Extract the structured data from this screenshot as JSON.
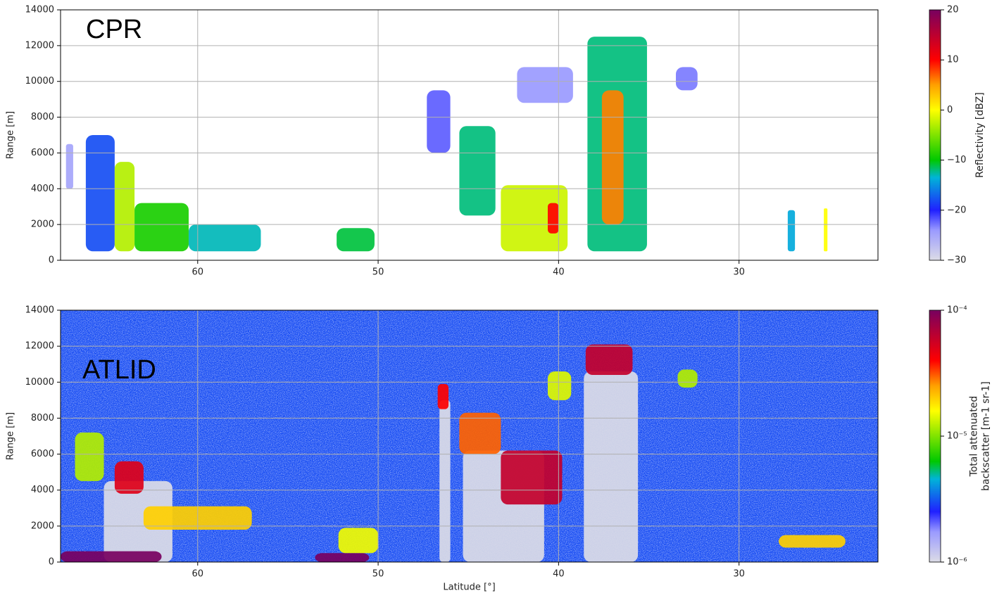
{
  "chart_data": [
    {
      "type": "heatmap",
      "title": "CPR",
      "ylabel": "Range [m]",
      "xlim": [
        67.6,
        22.3
      ],
      "ylim": [
        0,
        14000
      ],
      "xticks": [
        60,
        50,
        40,
        30
      ],
      "yticks": [
        0,
        2000,
        4000,
        6000,
        8000,
        10000,
        12000,
        14000
      ],
      "grid": true,
      "colorbar": {
        "label": [
          "Reflectivity [dBZ]"
        ],
        "lim": [
          -30,
          20
        ],
        "scale": "linear",
        "ticks": [
          {
            "value": -30,
            "label": "−30"
          },
          {
            "value": -20,
            "label": "−20"
          },
          {
            "value": -10,
            "label": "−10"
          },
          0,
          10,
          20
        ]
      },
      "cells": [
        {
          "x": [
            67.3,
            66.9
          ],
          "y": [
            4000,
            6500
          ],
          "value": -25
        },
        {
          "x": [
            66.2,
            64.6
          ],
          "y": [
            500,
            7000
          ],
          "value": -18
        },
        {
          "x": [
            64.6,
            63.5
          ],
          "y": [
            500,
            5500
          ],
          "value": -3
        },
        {
          "x": [
            63.5,
            60.5
          ],
          "y": [
            500,
            3200
          ],
          "value": -9
        },
        {
          "x": [
            60.5,
            56.5
          ],
          "y": [
            500,
            2000
          ],
          "value": -13
        },
        {
          "x": [
            52.3,
            50.2
          ],
          "y": [
            500,
            1800
          ],
          "value": -11
        },
        {
          "x": [
            47.3,
            46.0
          ],
          "y": [
            6000,
            9500
          ],
          "value": -22
        },
        {
          "x": [
            45.5,
            43.5
          ],
          "y": [
            2500,
            7500
          ],
          "value": -12
        },
        {
          "x": [
            43.2,
            39.5
          ],
          "y": [
            500,
            4200
          ],
          "value": -2
        },
        {
          "x": [
            40.6,
            40.0
          ],
          "y": [
            1500,
            3200
          ],
          "value": 10
        },
        {
          "x": [
            42.3,
            39.2
          ],
          "y": [
            8800,
            10800
          ],
          "value": -24
        },
        {
          "x": [
            38.4,
            35.1
          ],
          "y": [
            500,
            12500
          ],
          "value": -12
        },
        {
          "x": [
            37.6,
            36.4
          ],
          "y": [
            2000,
            9500
          ],
          "value": 6
        },
        {
          "x": [
            33.5,
            32.3
          ],
          "y": [
            9500,
            10800
          ],
          "value": -23
        },
        {
          "x": [
            27.3,
            26.9
          ],
          "y": [
            500,
            2800
          ],
          "value": -14
        },
        {
          "x": [
            25.3,
            25.1
          ],
          "y": [
            500,
            2900
          ],
          "value": 0
        }
      ]
    },
    {
      "type": "heatmap",
      "title": "ATLID",
      "ylabel": "Range [m]",
      "xlabel": "Latitude [°]",
      "xlim": [
        67.6,
        22.3
      ],
      "ylim": [
        0,
        14000
      ],
      "xticks": [
        60,
        50,
        40,
        30
      ],
      "yticks": [
        0,
        2000,
        4000,
        6000,
        8000,
        10000,
        12000,
        14000
      ],
      "grid": true,
      "colorbar": {
        "label": [
          "Total attenuated",
          "backscatter [m-1 sr-1]"
        ],
        "lim": [
          1e-06,
          0.0001
        ],
        "scale": "log",
        "ticks": [
          {
            "value": 1e-06,
            "label": "10⁻⁶"
          },
          {
            "value": 1e-05,
            "label": "10⁻⁵"
          },
          {
            "value": 0.0001,
            "label": "10⁻⁴"
          }
        ]
      },
      "cells": [
        {
          "x": [
            67.6,
            22.3
          ],
          "y": [
            0,
            14000
          ],
          "value": 3e-06
        },
        {
          "x": [
            65.2,
            61.4
          ],
          "y": [
            0,
            4500
          ],
          "value": 1e-06
        },
        {
          "x": [
            46.6,
            46.0
          ],
          "y": [
            0,
            9000
          ],
          "value": 1e-06
        },
        {
          "x": [
            45.3,
            40.8
          ],
          "y": [
            0,
            6200
          ],
          "value": 1e-06
        },
        {
          "x": [
            38.6,
            35.6
          ],
          "y": [
            0,
            10600
          ],
          "value": 1e-06
        },
        {
          "x": [
            67.6,
            62.0
          ],
          "y": [
            0,
            600
          ],
          "value": 0.0001
        },
        {
          "x": [
            53.5,
            50.5
          ],
          "y": [
            0,
            500
          ],
          "value": 0.0001
        },
        {
          "x": [
            66.8,
            65.2
          ],
          "y": [
            4500,
            7200
          ],
          "value": 1.2e-05
        },
        {
          "x": [
            64.6,
            63.0
          ],
          "y": [
            3800,
            5600
          ],
          "value": 5e-05
        },
        {
          "x": [
            63.0,
            57.0
          ],
          "y": [
            1800,
            3100
          ],
          "value": 2e-05
        },
        {
          "x": [
            52.2,
            50.0
          ],
          "y": [
            500,
            1900
          ],
          "value": 1.5e-05
        },
        {
          "x": [
            46.7,
            46.1
          ],
          "y": [
            8500,
            9900
          ],
          "value": 4e-05
        },
        {
          "x": [
            45.5,
            43.2
          ],
          "y": [
            6000,
            8300
          ],
          "value": 3e-05
        },
        {
          "x": [
            43.2,
            39.8
          ],
          "y": [
            3200,
            6200
          ],
          "value": 6e-05
        },
        {
          "x": [
            40.6,
            39.3
          ],
          "y": [
            9000,
            10600
          ],
          "value": 1.4e-05
        },
        {
          "x": [
            38.5,
            35.9
          ],
          "y": [
            10400,
            12100
          ],
          "value": 6e-05
        },
        {
          "x": [
            33.4,
            32.3
          ],
          "y": [
            9700,
            10700
          ],
          "value": 1.2e-05
        },
        {
          "x": [
            27.8,
            24.1
          ],
          "y": [
            800,
            1500
          ],
          "value": 2e-05
        }
      ]
    }
  ]
}
